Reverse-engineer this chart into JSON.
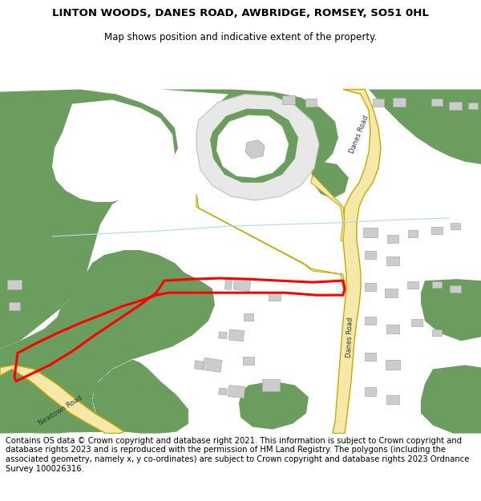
{
  "title": "LINTON WOODS, DANES ROAD, AWBRIDGE, ROMSEY, SO51 0HL",
  "subtitle": "Map shows position and indicative extent of the property.",
  "footer": "Contains OS data © Crown copyright and database right 2021. This information is subject to Crown copyright and database rights 2023 and is reproduced with the permission of HM Land Registry. The polygons (including the associated geometry, namely x, y co-ordinates) are subject to Crown copyright and database rights 2023 Ordnance Survey 100026316.",
  "map_bg": "#ffffff",
  "road_yellow": "#f5e8a8",
  "road_yellow_edge": "#c8a800",
  "green_color": "#6b9e5e",
  "building_color": "#cccccc",
  "building_edge": "#aaaaaa",
  "plot_color": "#ff0000",
  "light_blue": "#b8e0e8",
  "title_fontsize": 9.5,
  "subtitle_fontsize": 8.5,
  "footer_fontsize": 7.2
}
